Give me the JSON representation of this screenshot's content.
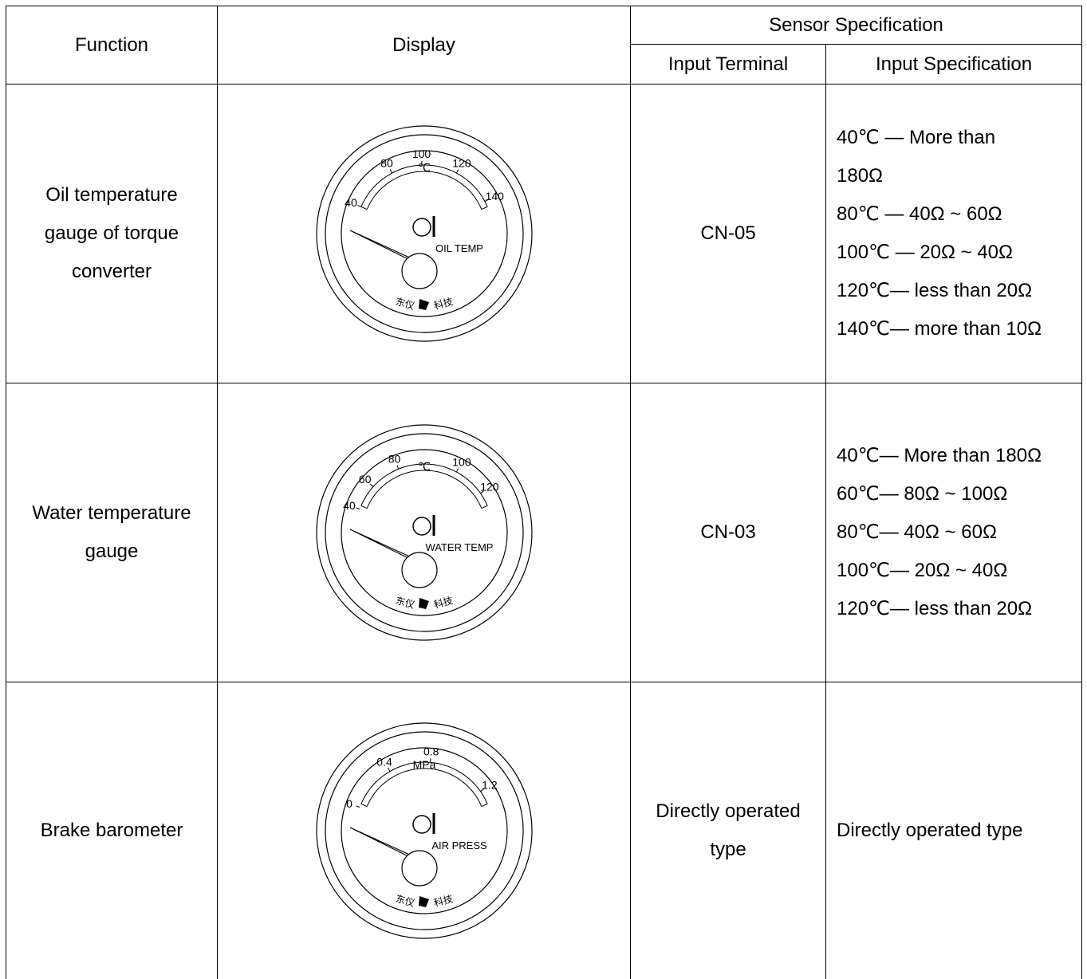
{
  "table": {
    "header": {
      "function": "Function",
      "display": "Display",
      "sensor_specification": "Sensor Specification",
      "input_terminal": "Input Terminal",
      "input_specification": "Input Specification"
    },
    "rows": [
      {
        "function": "Oil temperature gauge of torque converter",
        "gauge": {
          "unit": "℃",
          "scale": [
            "40",
            "80",
            "100",
            "120",
            "140"
          ],
          "label": "OIL TEMP",
          "brand_left": "东仪",
          "brand_right": "科技"
        },
        "input_terminal": "CN-05",
        "input_specification": [
          "40℃  — More than",
          "180Ω",
          "80℃  — 40Ω ~ 60Ω",
          "100℃  — 20Ω ~ 40Ω",
          "120℃— less than 20Ω",
          "140℃— more than 10Ω"
        ]
      },
      {
        "function": "Water temperature gauge",
        "gauge": {
          "unit": "℃",
          "scale": [
            "40",
            "60",
            "80",
            "100",
            "120"
          ],
          "label": "WATER TEMP",
          "brand_left": "东仪",
          "brand_right": "科技"
        },
        "input_terminal": "CN-03",
        "input_specification": [
          "40℃— More than 180Ω",
          "60℃— 80Ω ~ 100Ω",
          "80℃— 40Ω ~ 60Ω",
          "100℃— 20Ω ~ 40Ω",
          "120℃— less than 20Ω"
        ]
      },
      {
        "function": "Brake barometer",
        "gauge": {
          "unit": "MPa",
          "scale": [
            "0",
            "0.4",
            "0.8",
            "1.2"
          ],
          "label": "AIR PRESS",
          "brand_left": "东仪",
          "brand_right": "科技"
        },
        "input_terminal": "Directly operated type",
        "input_specification": [
          "Directly operated type"
        ]
      }
    ]
  }
}
